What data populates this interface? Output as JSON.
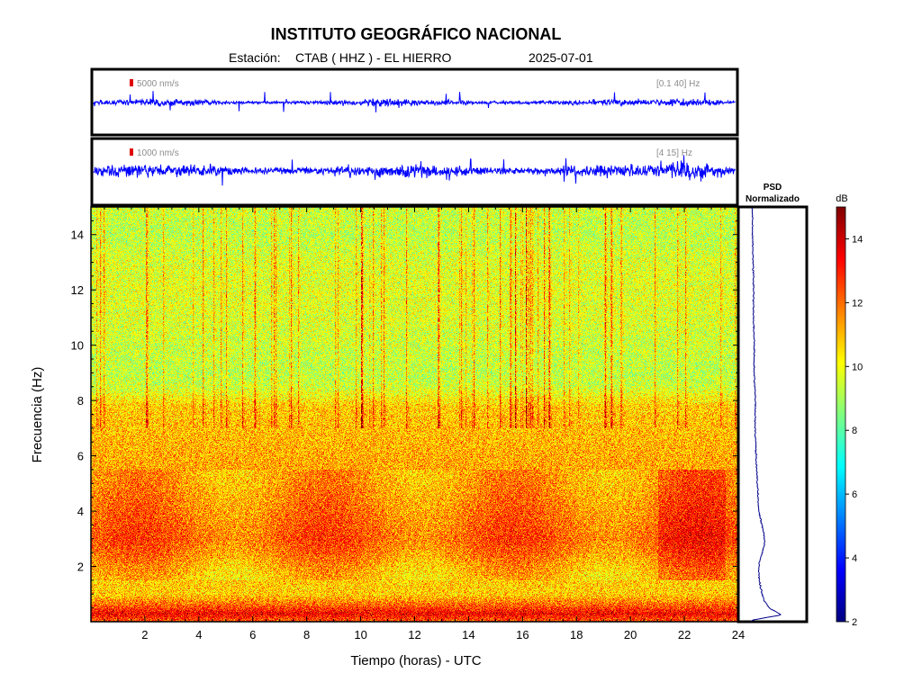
{
  "header": {
    "title": "INSTITUTO GEOGRÁFICO NACIONAL",
    "station_label": "Estación:",
    "station": "CTAB ( HHZ ) - EL HIERRO",
    "date": "2025-07-01"
  },
  "traces": [
    {
      "scale": "5000 nm/s",
      "band": "[0.1 40] Hz",
      "scale_color": "#e00000",
      "line_color": "#0000ff"
    },
    {
      "scale": "1000 nm/s",
      "band": "[4 15] Hz",
      "scale_color": "#e00000",
      "line_color": "#0000ff"
    }
  ],
  "psd": {
    "title_line1": "PSD",
    "title_line2": "Normalizado",
    "line_color": "#00008b"
  },
  "colorbar": {
    "unit": "dB",
    "ticks": [
      "2",
      "4",
      "6",
      "8",
      "10",
      "12",
      "14"
    ]
  },
  "chart_data": {
    "type": "heatmap",
    "title": "INSTITUTO GEOGRÁFICO NACIONAL",
    "xlabel": "Tiempo (horas) - UTC",
    "ylabel": "Frecuencia  (Hz)",
    "xlim": [
      0,
      24
    ],
    "ylim": [
      0,
      15
    ],
    "x_ticks": [
      2,
      4,
      6,
      8,
      10,
      12,
      14,
      16,
      18,
      20,
      22,
      24
    ],
    "y_ticks": [
      2,
      4,
      6,
      8,
      10,
      12,
      14
    ],
    "colorscale": "jet",
    "clim": [
      2,
      15
    ],
    "colorbar_ticks": [
      2,
      4,
      6,
      8,
      10,
      12,
      14
    ],
    "mean_level_by_frequency": {
      "frequency_hz": [
        0.1,
        0.3,
        0.6,
        1,
        1.5,
        2,
        2.5,
        3,
        3.5,
        4,
        5,
        6,
        7,
        7.8,
        8.5,
        9,
        10,
        11,
        12,
        13,
        14,
        15
      ],
      "level_db": [
        12.5,
        13.5,
        12.2,
        10.8,
        10.8,
        11.2,
        11.8,
        12.2,
        12.0,
        11.8,
        11.4,
        11.2,
        11.0,
        10.8,
        9.5,
        9.3,
        9.5,
        9.7,
        9.8,
        9.7,
        9.3,
        9.5
      ]
    },
    "psd_normalized": {
      "frequency_hz": [
        0.05,
        0.25,
        0.5,
        0.8,
        1.2,
        1.6,
        2.0,
        2.4,
        2.8,
        3.2,
        3.6,
        4.0,
        5.0,
        6.0,
        7.0,
        8.0,
        9.0,
        10.0,
        11.0,
        12.0,
        13.0,
        14.0,
        15.0
      ],
      "value": [
        0.02,
        0.95,
        0.55,
        0.4,
        0.3,
        0.25,
        0.24,
        0.32,
        0.42,
        0.4,
        0.32,
        0.24,
        0.2,
        0.16,
        0.13,
        0.14,
        0.1,
        0.1,
        0.08,
        0.08,
        0.07,
        0.05,
        0.04
      ]
    }
  }
}
